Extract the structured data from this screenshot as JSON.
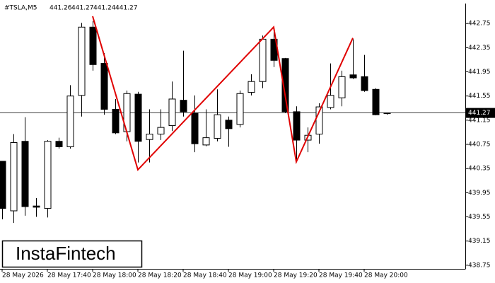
{
  "chart_data": {
    "type": "candlestick",
    "header": {
      "symbol": "#TSLA,M5",
      "ohlc": [
        441.26,
        441.27,
        441.24,
        441.27
      ]
    },
    "logo": "InstaFintech",
    "categories": [
      "28 May 2026",
      null,
      null,
      null,
      "28 May 17:40",
      null,
      null,
      null,
      "28 May 18:00",
      null,
      null,
      null,
      "28 May 18:20",
      null,
      null,
      null,
      "28 May 18:40",
      null,
      null,
      null,
      "28 May 19:00",
      null,
      null,
      null,
      "28 May 19:20",
      null,
      null,
      null,
      "28 May 19:40",
      null,
      null,
      null,
      "28 May 20:00",
      null,
      null
    ],
    "open": [
      440.47,
      439.65,
      440.8,
      439.73,
      439.69,
      440.8,
      440.71,
      441.56,
      442.69,
      442.09,
      441.33,
      440.96,
      441.58,
      440.83,
      440.92,
      441.06,
      441.48,
      441.27,
      440.74,
      440.85,
      441.15,
      441.08,
      441.61,
      441.79,
      442.49,
      442.17,
      441.29,
      440.82,
      440.92,
      441.36,
      441.52,
      441.9,
      441.87,
      441.66,
      441.26
    ],
    "high": [
      440.47,
      440.92,
      441.2,
      439.86,
      440.82,
      440.86,
      441.73,
      442.76,
      442.79,
      442.26,
      441.5,
      441.64,
      441.62,
      441.33,
      441.33,
      441.79,
      442.3,
      441.56,
      441.33,
      441.66,
      441.21,
      441.64,
      441.91,
      442.55,
      442.67,
      442.18,
      441.38,
      441.03,
      441.43,
      442.09,
      441.97,
      442.49,
      442.23,
      441.68,
      441.27
    ],
    "low": [
      439.51,
      439.45,
      439.57,
      439.55,
      439.54,
      440.68,
      440.68,
      441.21,
      441.97,
      441.24,
      440.92,
      440.8,
      440.45,
      440.45,
      440.82,
      440.97,
      441.21,
      440.62,
      440.72,
      440.8,
      440.71,
      441.03,
      441.56,
      441.68,
      442.03,
      441.27,
      440.49,
      440.62,
      440.76,
      441.33,
      441.38,
      441.83,
      441.62,
      441.23,
      441.24
    ],
    "close": [
      439.69,
      440.78,
      439.72,
      439.71,
      440.8,
      440.71,
      441.55,
      442.69,
      442.07,
      441.33,
      440.94,
      441.59,
      440.8,
      440.92,
      441.03,
      441.5,
      441.29,
      440.76,
      440.86,
      441.24,
      441.01,
      441.59,
      441.79,
      442.49,
      442.14,
      441.29,
      440.82,
      440.9,
      441.37,
      441.56,
      441.87,
      441.85,
      441.64,
      441.24,
      441.27
    ],
    "up_color": "#ffffff",
    "down_color": "#000000",
    "pattern": {
      "color": "#e00000",
      "values": [
        null,
        null,
        null,
        null,
        null,
        null,
        null,
        null,
        442.87,
        null,
        null,
        null,
        440.33,
        null,
        null,
        null,
        null,
        null,
        null,
        null,
        null,
        null,
        null,
        null,
        442.69,
        null,
        440.46,
        null,
        null,
        null,
        null,
        442.51,
        null,
        null,
        null
      ]
    },
    "current_price": 441.27,
    "ylim": [
      438.69,
      443.08
    ],
    "yticks": [
      442.75,
      442.35,
      441.95,
      441.55,
      441.15,
      440.75,
      440.35,
      439.95,
      439.55,
      439.15,
      438.75
    ]
  }
}
